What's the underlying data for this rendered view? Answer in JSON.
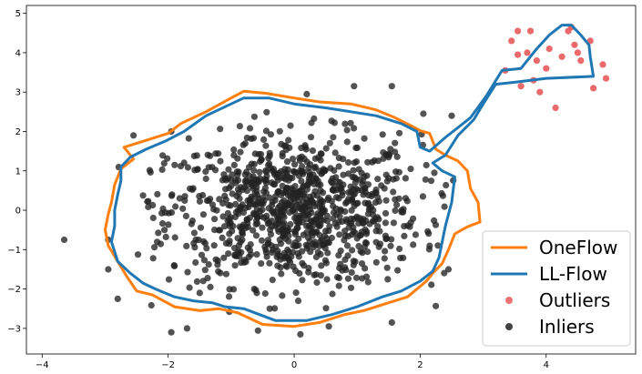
{
  "chart_data": {
    "type": "scatter",
    "xlim": [
      -4.25,
      5.42
    ],
    "ylim": [
      -3.65,
      5.2
    ],
    "x_ticks": [
      -4,
      -2,
      0,
      2,
      4
    ],
    "x_tick_labels": [
      "−4",
      "−2",
      "0",
      "2",
      "4"
    ],
    "y_ticks": [
      -3,
      -2,
      -1,
      0,
      1,
      2,
      3,
      4,
      5
    ],
    "y_tick_labels": [
      "−3",
      "−2",
      "−1",
      "0",
      "1",
      "2",
      "3",
      "4",
      "5"
    ],
    "grid": false,
    "legend_position": "lower-right",
    "series": [
      {
        "name": "OneFlow",
        "kind": "contour",
        "color": "#ff7f0e",
        "points": [
          [
            -1.4,
            2.5
          ],
          [
            -1.0,
            2.85
          ],
          [
            -0.8,
            3.02
          ],
          [
            -0.45,
            2.97
          ],
          [
            0.0,
            2.85
          ],
          [
            0.4,
            2.75
          ],
          [
            0.9,
            2.7
          ],
          [
            1.3,
            2.55
          ],
          [
            1.6,
            2.35
          ],
          [
            1.85,
            2.15
          ],
          [
            2.0,
            2.02
          ],
          [
            2.15,
            1.95
          ],
          [
            2.25,
            1.55
          ],
          [
            2.4,
            1.4
          ],
          [
            2.6,
            1.25
          ],
          [
            2.75,
            1.0
          ],
          [
            2.8,
            0.55
          ],
          [
            2.92,
            0.2
          ],
          [
            2.95,
            -0.3
          ],
          [
            2.75,
            -0.42
          ],
          [
            2.55,
            -0.6
          ],
          [
            2.45,
            -1.0
          ],
          [
            2.35,
            -1.35
          ],
          [
            2.2,
            -1.6
          ],
          [
            2.1,
            -1.8
          ],
          [
            1.8,
            -2.2
          ],
          [
            1.5,
            -2.35
          ],
          [
            1.1,
            -2.55
          ],
          [
            0.8,
            -2.65
          ],
          [
            0.4,
            -2.85
          ],
          [
            0.0,
            -2.95
          ],
          [
            -0.5,
            -2.9
          ],
          [
            -0.9,
            -2.6
          ],
          [
            -1.2,
            -2.5
          ],
          [
            -1.5,
            -2.55
          ],
          [
            -1.9,
            -2.45
          ],
          [
            -2.25,
            -2.15
          ],
          [
            -2.5,
            -2.05
          ],
          [
            -2.65,
            -1.7
          ],
          [
            -2.8,
            -1.3
          ],
          [
            -2.95,
            -0.9
          ],
          [
            -3.0,
            -0.5
          ],
          [
            -2.95,
            -0.1
          ],
          [
            -2.9,
            0.2
          ],
          [
            -2.85,
            0.65
          ],
          [
            -2.75,
            1.05
          ],
          [
            -2.55,
            1.3
          ],
          [
            -2.7,
            1.6
          ],
          [
            -2.4,
            1.75
          ],
          [
            -2.0,
            1.95
          ],
          [
            -1.8,
            2.2
          ],
          [
            -1.4,
            2.5
          ]
        ]
      },
      {
        "name": "LL-Flow",
        "kind": "contour",
        "color": "#1f77b4",
        "points": [
          [
            -1.4,
            2.4
          ],
          [
            -1.0,
            2.7
          ],
          [
            -0.8,
            2.85
          ],
          [
            -0.4,
            2.85
          ],
          [
            0.0,
            2.7
          ],
          [
            0.5,
            2.6
          ],
          [
            0.9,
            2.5
          ],
          [
            1.3,
            2.4
          ],
          [
            1.7,
            2.2
          ],
          [
            1.95,
            2.0
          ],
          [
            2.0,
            1.6
          ],
          [
            2.15,
            1.5
          ],
          [
            2.4,
            1.85
          ],
          [
            2.8,
            2.35
          ],
          [
            3.05,
            2.9
          ],
          [
            3.3,
            3.55
          ],
          [
            3.6,
            3.6
          ],
          [
            3.85,
            4.1
          ],
          [
            4.05,
            4.45
          ],
          [
            4.25,
            4.7
          ],
          [
            4.4,
            4.7
          ],
          [
            4.55,
            4.45
          ],
          [
            4.68,
            4.2
          ],
          [
            4.7,
            3.9
          ],
          [
            4.75,
            3.4
          ],
          [
            4.0,
            3.35
          ],
          [
            3.5,
            3.25
          ],
          [
            3.2,
            3.2
          ],
          [
            3.0,
            2.7
          ],
          [
            2.85,
            2.3
          ],
          [
            2.6,
            1.9
          ],
          [
            2.4,
            1.4
          ],
          [
            2.2,
            1.2
          ],
          [
            2.35,
            1.0
          ],
          [
            2.55,
            0.85
          ],
          [
            2.5,
            0.2
          ],
          [
            2.4,
            -0.4
          ],
          [
            2.35,
            -0.8
          ],
          [
            2.3,
            -1.2
          ],
          [
            2.2,
            -1.55
          ],
          [
            2.0,
            -1.8
          ],
          [
            1.7,
            -2.05
          ],
          [
            1.4,
            -2.2
          ],
          [
            1.0,
            -2.45
          ],
          [
            0.6,
            -2.65
          ],
          [
            0.2,
            -2.8
          ],
          [
            -0.3,
            -2.8
          ],
          [
            -0.8,
            -2.5
          ],
          [
            -1.1,
            -2.45
          ],
          [
            -1.3,
            -2.35
          ],
          [
            -1.6,
            -2.3
          ],
          [
            -1.9,
            -2.2
          ],
          [
            -2.2,
            -2.0
          ],
          [
            -2.4,
            -1.85
          ],
          [
            -2.6,
            -1.6
          ],
          [
            -2.8,
            -1.3
          ],
          [
            -2.9,
            -0.8
          ],
          [
            -2.85,
            -0.4
          ],
          [
            -2.85,
            0.0
          ],
          [
            -2.8,
            0.4
          ],
          [
            -2.75,
            0.75
          ],
          [
            -2.75,
            1.1
          ],
          [
            -2.6,
            1.35
          ],
          [
            -2.35,
            1.55
          ],
          [
            -2.05,
            1.75
          ],
          [
            -1.75,
            2.0
          ],
          [
            -1.4,
            2.4
          ]
        ]
      },
      {
        "name": "Outliers",
        "kind": "scatter",
        "color": "#e8595b",
        "points": [
          [
            3.35,
            3.55
          ],
          [
            3.45,
            4.3
          ],
          [
            3.55,
            4.55
          ],
          [
            3.6,
            3.15
          ],
          [
            3.7,
            4.0
          ],
          [
            3.75,
            4.55
          ],
          [
            3.8,
            3.3
          ],
          [
            3.85,
            3.8
          ],
          [
            3.9,
            3.0
          ],
          [
            4.0,
            3.6
          ],
          [
            4.05,
            4.1
          ],
          [
            4.15,
            2.6
          ],
          [
            4.25,
            3.9
          ],
          [
            4.35,
            4.55
          ],
          [
            4.45,
            4.2
          ],
          [
            4.5,
            4.0
          ],
          [
            4.55,
            3.8
          ],
          [
            4.7,
            4.3
          ],
          [
            4.75,
            3.1
          ],
          [
            4.9,
            3.7
          ],
          [
            4.95,
            3.35
          ],
          [
            3.55,
            3.95
          ],
          [
            4.4,
            4.65
          ]
        ]
      },
      {
        "name": "Inliers",
        "kind": "scatter",
        "color": "#222222",
        "n_points": 1000,
        "distribution": "roughly Gaussian blob centred at (0, 0), std ≈ 1 in x and y",
        "extreme_points": [
          [
            -3.65,
            -0.75
          ],
          [
            -2.95,
            -0.75
          ],
          [
            -2.95,
            -1.5
          ],
          [
            -2.8,
            -2.25
          ],
          [
            -1.95,
            -3.1
          ],
          [
            -1.7,
            -3.0
          ],
          [
            -1.5,
            -2.1
          ],
          [
            0.1,
            -3.15
          ],
          [
            0.55,
            -2.95
          ],
          [
            1.55,
            -2.85
          ],
          [
            2.45,
            -1.5
          ],
          [
            2.5,
            2.4
          ],
          [
            2.05,
            2.45
          ],
          [
            1.55,
            3.15
          ],
          [
            0.95,
            3.15
          ],
          [
            0.2,
            2.95
          ],
          [
            -1.95,
            2.0
          ],
          [
            -2.55,
            1.9
          ]
        ]
      }
    ]
  },
  "legend": {
    "items": [
      {
        "label": "OneFlow",
        "kind": "line",
        "color": "#ff7f0e"
      },
      {
        "label": "LL-Flow",
        "kind": "line",
        "color": "#1f77b4"
      },
      {
        "label": "Outliers",
        "kind": "marker",
        "color": "#e8595b"
      },
      {
        "label": "Inliers",
        "kind": "marker",
        "color": "#222222"
      }
    ]
  }
}
